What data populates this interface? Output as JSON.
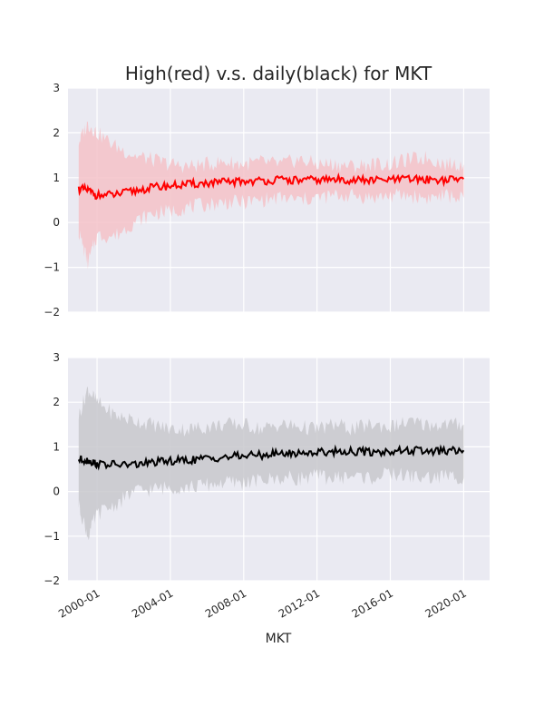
{
  "chart_data": {
    "type": "line",
    "title": "High(red) v.s. daily(black) for MKT",
    "xlabel": "MKT",
    "x_range": [
      "1998-06-01",
      "2021-06-01"
    ],
    "x_ticks": [
      "2000-01",
      "2004-01",
      "2008-01",
      "2012-01",
      "2016-01",
      "2020-01"
    ],
    "grid": true,
    "panels": [
      {
        "name": "High",
        "line_color": "#ff0000",
        "band_color": "#f4c2c8",
        "ylim": [
          -2,
          3
        ],
        "y_ticks": [
          "−2",
          "−1",
          "0",
          "1",
          "2",
          "3"
        ],
        "x": [
          "1999-01",
          "1999-07",
          "2000-01",
          "2001-01",
          "2002-01",
          "2003-01",
          "2004-01",
          "2005-01",
          "2006-01",
          "2007-01",
          "2008-01",
          "2009-01",
          "2010-01",
          "2011-01",
          "2012-01",
          "2013-01",
          "2014-01",
          "2015-01",
          "2016-01",
          "2017-01",
          "2018-01",
          "2019-01",
          "2020-01"
        ],
        "values": [
          0.75,
          0.72,
          0.6,
          0.62,
          0.7,
          0.78,
          0.82,
          0.85,
          0.88,
          0.9,
          0.92,
          0.93,
          0.95,
          0.94,
          0.95,
          0.96,
          0.95,
          0.94,
          0.95,
          0.97,
          0.96,
          0.95,
          0.97
        ],
        "upper": [
          1.8,
          2.2,
          2.0,
          1.7,
          1.5,
          1.4,
          1.3,
          1.25,
          1.3,
          1.35,
          1.3,
          1.35,
          1.3,
          1.4,
          1.3,
          1.3,
          1.25,
          1.3,
          1.3,
          1.4,
          1.45,
          1.3,
          1.3
        ],
        "lower": [
          -0.2,
          -0.9,
          -0.3,
          -0.3,
          0.0,
          0.2,
          0.25,
          0.35,
          0.4,
          0.45,
          0.45,
          0.5,
          0.55,
          0.5,
          0.55,
          0.6,
          0.6,
          0.55,
          0.6,
          0.6,
          0.55,
          0.6,
          0.55
        ]
      },
      {
        "name": "daily",
        "line_color": "#000000",
        "band_color": "#c8c8cc",
        "ylim": [
          -2,
          3
        ],
        "y_ticks": [
          "−2",
          "−1",
          "0",
          "1",
          "2",
          "3"
        ],
        "x": [
          "1999-01",
          "1999-07",
          "2000-01",
          "2001-01",
          "2002-01",
          "2003-01",
          "2004-01",
          "2005-01",
          "2006-01",
          "2007-01",
          "2008-01",
          "2009-01",
          "2010-01",
          "2011-01",
          "2012-01",
          "2013-01",
          "2014-01",
          "2015-01",
          "2016-01",
          "2017-01",
          "2018-01",
          "2019-01",
          "2020-01"
        ],
        "values": [
          0.72,
          0.7,
          0.62,
          0.6,
          0.6,
          0.65,
          0.68,
          0.7,
          0.74,
          0.77,
          0.8,
          0.82,
          0.85,
          0.86,
          0.88,
          0.9,
          0.9,
          0.88,
          0.9,
          0.92,
          0.9,
          0.9,
          0.92
        ],
        "upper": [
          1.7,
          2.3,
          2.0,
          1.7,
          1.6,
          1.5,
          1.4,
          1.4,
          1.45,
          1.5,
          1.5,
          1.4,
          1.5,
          1.45,
          1.4,
          1.5,
          1.4,
          1.5,
          1.45,
          1.55,
          1.5,
          1.5,
          1.5
        ],
        "lower": [
          -0.3,
          -1.0,
          -0.5,
          -0.3,
          0.0,
          0.05,
          0.1,
          0.1,
          0.15,
          0.2,
          0.2,
          0.25,
          0.3,
          0.3,
          0.35,
          0.3,
          0.35,
          0.3,
          0.4,
          0.35,
          0.3,
          0.35,
          0.3
        ]
      }
    ]
  }
}
